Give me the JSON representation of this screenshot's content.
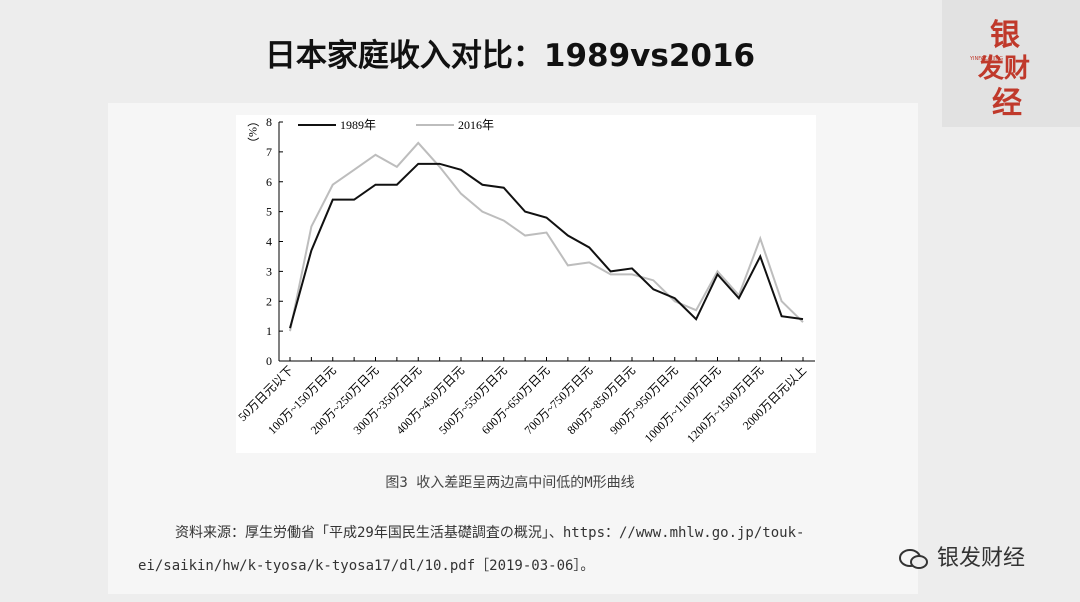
{
  "title": "日本家庭收入对比：1989vs2016",
  "chart_data": {
    "type": "line",
    "y_label": "（%）",
    "categories": [
      "50万日元以下",
      null,
      "100万~150万日元",
      null,
      "200万~250万日元",
      null,
      "300万~350万日元",
      null,
      "400万~450万日元",
      null,
      "500万~550万日元",
      null,
      "600万~650万日元",
      null,
      "700万~750万日元",
      null,
      "800万~850万日元",
      null,
      "900万~950万日元",
      null,
      "1000万~1100万日元",
      null,
      "1200万~1500万日元",
      null,
      "2000万日元以上"
    ],
    "series": [
      {
        "name": "1989年",
        "color": "#111111",
        "values": [
          1.1,
          3.7,
          5.4,
          5.4,
          5.9,
          5.9,
          6.6,
          6.6,
          6.4,
          5.9,
          5.8,
          5.0,
          4.8,
          4.2,
          3.8,
          3.0,
          3.1,
          2.4,
          2.1,
          1.4,
          2.9,
          2.1,
          3.5,
          1.5,
          1.4
        ]
      },
      {
        "name": "2016年",
        "color": "#bdbdbd",
        "values": [
          1.0,
          4.5,
          5.9,
          6.4,
          6.9,
          6.5,
          7.3,
          6.5,
          5.6,
          5.0,
          4.7,
          4.2,
          4.3,
          3.2,
          3.3,
          2.9,
          2.9,
          2.7,
          2.0,
          1.7,
          3.0,
          2.2,
          4.1,
          2.0,
          1.3
        ]
      }
    ],
    "ylim": [
      0,
      8
    ],
    "yticks": [
      0,
      1,
      2,
      3,
      4,
      5,
      6,
      7,
      8
    ],
    "legend": "top-left",
    "caption": "图3 收入差距呈两边高中间低的M形曲线"
  },
  "source": [
    "资料来源：厚生労働省「平成29年国民生活基礎調査の概況」、https：//www.mhlw.go.jp/touk-",
    "ei/saikin/hw/k-tyosa/k-tyosa17/dl/10.pdf［2019-03-06］。"
  ],
  "logo": {
    "line1": "银",
    "line2": "发财",
    "line3": "经",
    "pinyin": "YINFACAIJING"
  },
  "account": "银发财经"
}
